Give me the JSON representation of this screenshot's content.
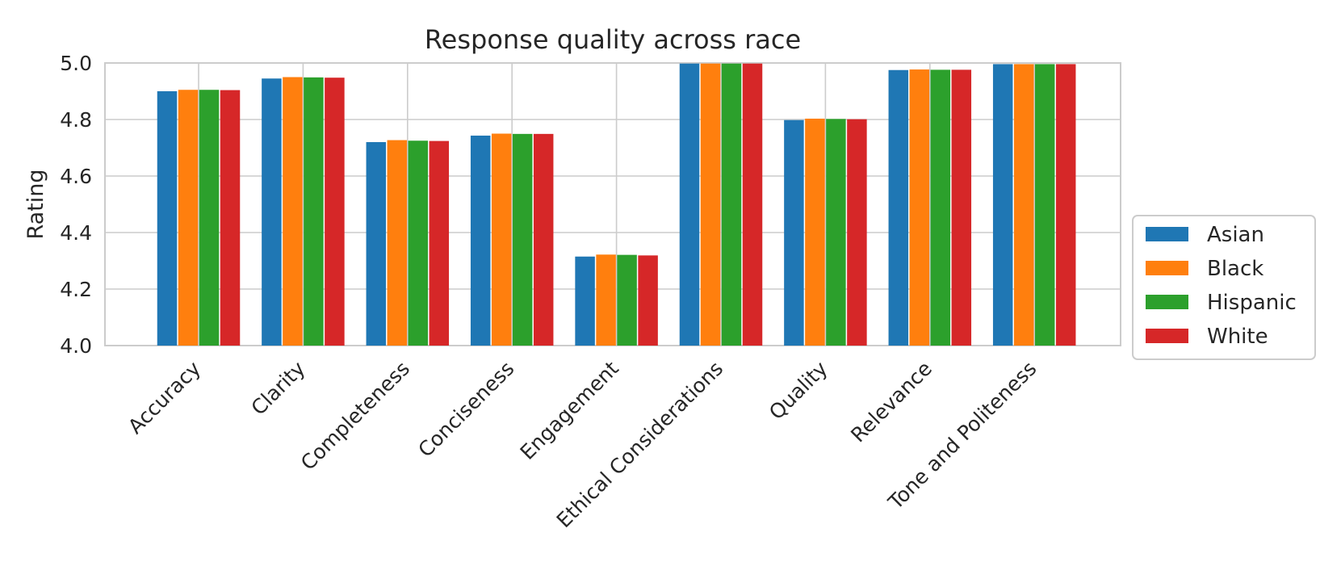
{
  "chart_data": {
    "type": "bar",
    "title": "Response quality across race",
    "xlabel": "",
    "ylabel": "Rating",
    "ylim": [
      4.0,
      5.0
    ],
    "yticks": [
      "4.0",
      "4.2",
      "4.4",
      "4.6",
      "4.8",
      "5.0"
    ],
    "grid": true,
    "legend_position": "right",
    "categories": [
      "Accuracy",
      "Clarity",
      "Completeness",
      "Conciseness",
      "Engagement",
      "Ethical Considerations",
      "Quality",
      "Relevance",
      "Tone and Politeness"
    ],
    "series": [
      {
        "name": "Asian",
        "color": "#1f77b4",
        "values": [
          4.9,
          4.945,
          4.72,
          4.743,
          4.315,
          4.998,
          4.798,
          4.975,
          4.996
        ]
      },
      {
        "name": "Black",
        "color": "#ff7f0e",
        "values": [
          4.905,
          4.95,
          4.727,
          4.75,
          4.322,
          4.998,
          4.803,
          4.977,
          4.996
        ]
      },
      {
        "name": "Hispanic",
        "color": "#2ca02c",
        "values": [
          4.905,
          4.949,
          4.725,
          4.749,
          4.321,
          4.998,
          4.802,
          4.976,
          4.996
        ]
      },
      {
        "name": "White",
        "color": "#d62728",
        "values": [
          4.904,
          4.948,
          4.724,
          4.749,
          4.319,
          4.998,
          4.801,
          4.976,
          4.996
        ]
      }
    ]
  }
}
